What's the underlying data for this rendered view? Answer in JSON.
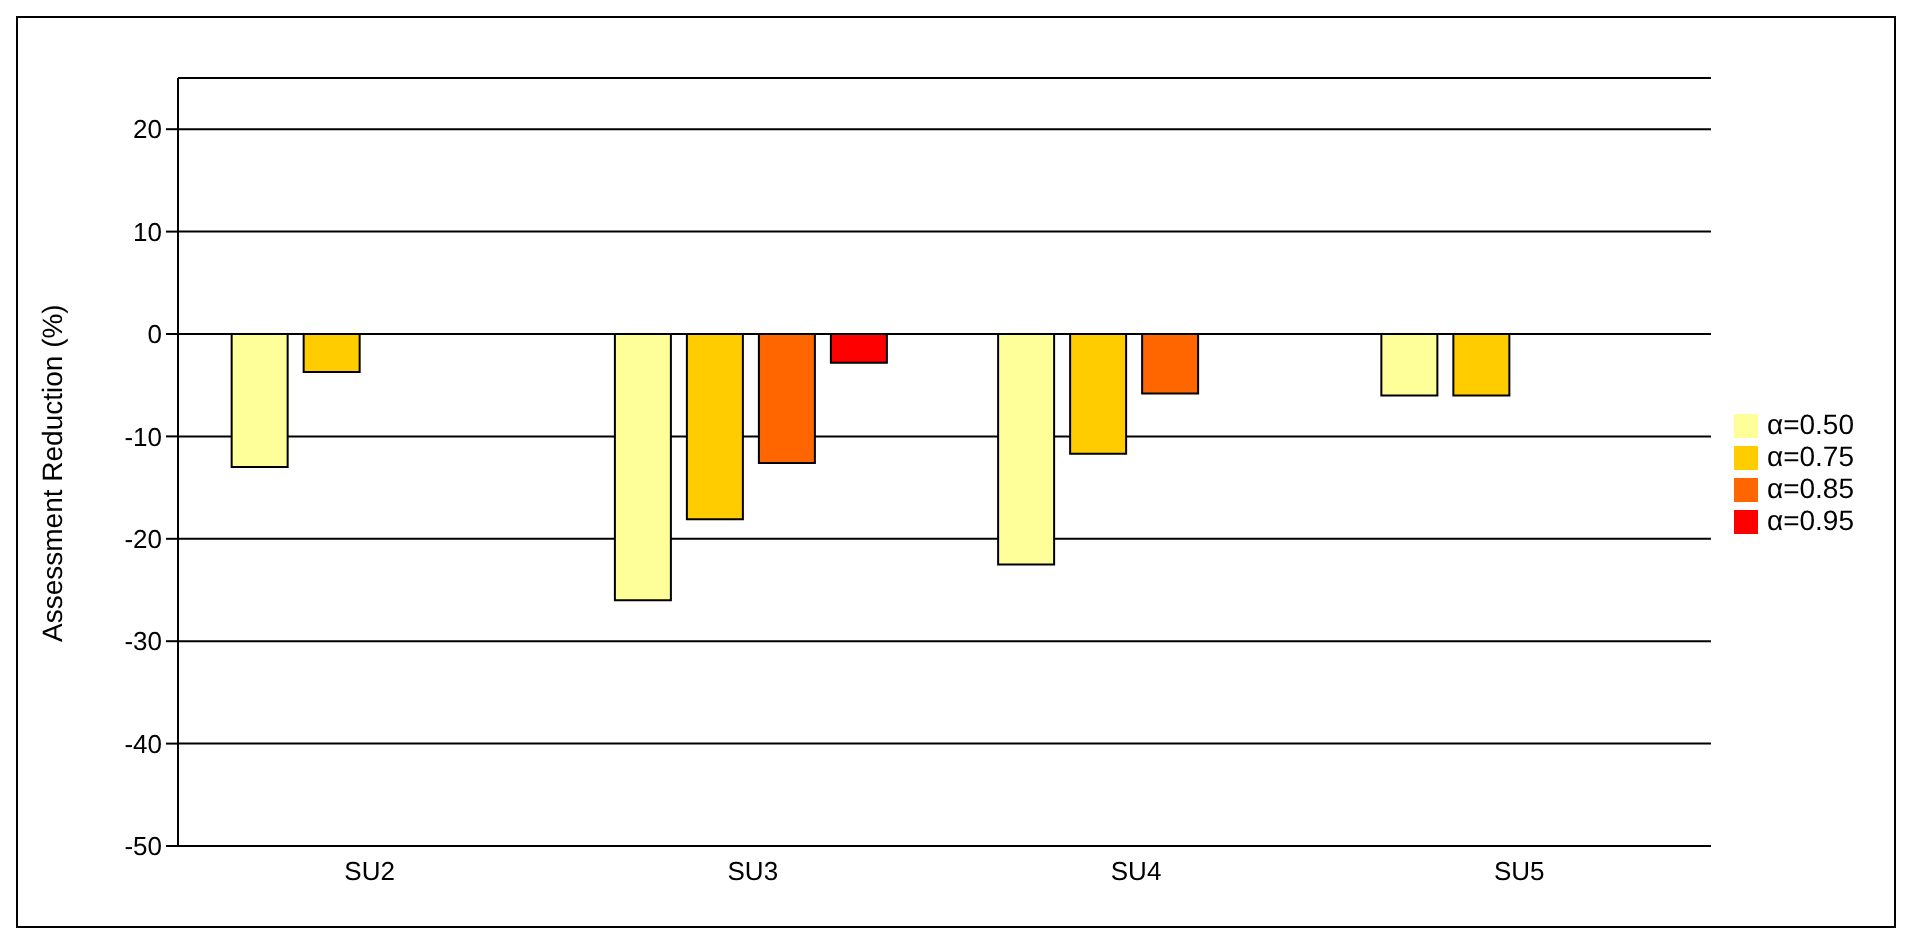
{
  "chart_data": {
    "type": "bar",
    "ylabel": "Assessment Reduction (%)",
    "categories": [
      "SU2",
      "SU3",
      "SU4",
      "SU5"
    ],
    "series": [
      {
        "name": "α=0.50",
        "color": "#ffff99",
        "values": [
          -13,
          -26,
          -22.5,
          -6
        ]
      },
      {
        "name": "α=0.75",
        "color": "#ffcc00",
        "values": [
          -3.7,
          -18.1,
          -11.7,
          -6
        ]
      },
      {
        "name": "α=0.85",
        "color": "#ff6600",
        "values": [
          null,
          -12.6,
          -5.8,
          null
        ]
      },
      {
        "name": "α=0.95",
        "color": "#ff0000",
        "values": [
          null,
          -2.8,
          null,
          null
        ]
      }
    ],
    "ylim": [
      -50,
      25
    ],
    "yticks": [
      -50,
      -40,
      -30,
      -20,
      -10,
      0,
      10,
      20
    ],
    "grid": "y",
    "legend": "right"
  }
}
